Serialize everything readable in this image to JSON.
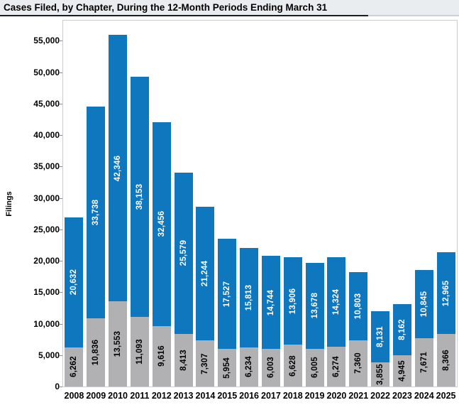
{
  "chart_data": {
    "type": "bar",
    "stacked": true,
    "title": "Cases Filed, by Chapter, During the 12-Month Periods Ending March 31",
    "xlabel": "",
    "ylabel": "Filings",
    "legend": "none",
    "grid": false,
    "bar_value_labels_rotated": true,
    "categories": [
      "2008",
      "2009",
      "2010",
      "2011",
      "2012",
      "2013",
      "2014",
      "2015",
      "2016",
      "2017",
      "2018",
      "2019",
      "2020",
      "2021",
      "2022",
      "2023",
      "2024",
      "2025"
    ],
    "series": [
      {
        "id": "bottom-gray-segment",
        "color": "#b1b1b3",
        "label_text_color": "#000000",
        "values": [
          6262,
          10836,
          13553,
          11093,
          9616,
          8413,
          7307,
          5954,
          6234,
          6003,
          6628,
          6005,
          6274,
          7360,
          3855,
          4945,
          7671,
          8366
        ]
      },
      {
        "id": "top-blue-segment",
        "color": "#0f77bd",
        "label_text_color": "#ffffff",
        "values": [
          20632,
          33738,
          42346,
          38153,
          32456,
          25579,
          21244,
          17527,
          15813,
          14744,
          13906,
          13678,
          14324,
          10803,
          8131,
          8162,
          10845,
          12965
        ]
      }
    ],
    "ylim": [
      0,
      58200
    ],
    "yticks": [
      {
        "value": 0,
        "label": "0"
      },
      {
        "value": 5000,
        "label": "5,000"
      },
      {
        "value": 10000,
        "label": "10,000"
      },
      {
        "value": 15000,
        "label": "15,000"
      },
      {
        "value": 20000,
        "label": "20,000"
      },
      {
        "value": 25000,
        "label": "25,000"
      },
      {
        "value": 30000,
        "label": "30,000"
      },
      {
        "value": 35000,
        "label": "35,000"
      },
      {
        "value": 40000,
        "label": "40,000"
      },
      {
        "value": 45000,
        "label": "45,000"
      },
      {
        "value": 50000,
        "label": "50,000"
      },
      {
        "value": 55000,
        "label": "55,000"
      }
    ]
  },
  "colors": {
    "title_bar_bg": "#eaedef",
    "title_underline": "#1a1d21",
    "plot_border": "#c9cdd1",
    "tick_mark": "#8a8a8a",
    "background": "#ffffff"
  }
}
